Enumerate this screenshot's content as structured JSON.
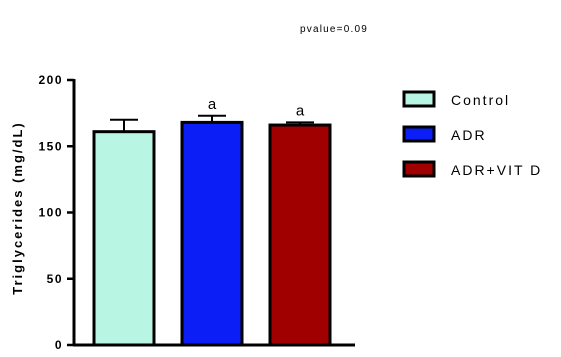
{
  "chart_data": {
    "type": "bar",
    "annotation": "pvalue=0.09",
    "ylabel": "Triglycerides (mg/dL)",
    "xlabel": "",
    "ylim": [
      0,
      200
    ],
    "yticks": [
      0,
      50,
      100,
      150,
      200
    ],
    "grid": false,
    "legend_position": "right",
    "series": [
      {
        "name": "Control",
        "value": 161,
        "error": 9,
        "significance": "",
        "color": "#b8f5e3"
      },
      {
        "name": "ADR",
        "value": 168,
        "error": 5,
        "significance": "a",
        "color": "#0a1ef5"
      },
      {
        "name": "ADR+VIT D",
        "value": 166,
        "error": 2,
        "significance": "a",
        "color": "#a00000"
      }
    ]
  }
}
